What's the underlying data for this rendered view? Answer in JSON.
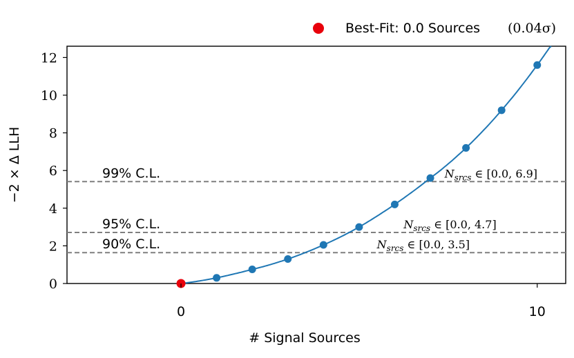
{
  "chart_data": {
    "type": "line",
    "xlabel": "# Signal Sources",
    "ylabel": "−2 × Δ LLH",
    "xlim": [
      -3.2,
      10.8
    ],
    "ylim": [
      0,
      12.6
    ],
    "xticks": [
      0,
      10
    ],
    "yticks": [
      0,
      2,
      4,
      6,
      8,
      10,
      12
    ],
    "grid": false,
    "legend_position": "top-right",
    "series": [
      {
        "kind": "markers",
        "color": "#1f77b4",
        "x": [
          0,
          1,
          2,
          3,
          4,
          5,
          6,
          7,
          8,
          9,
          10
        ],
        "values": [
          0.0,
          0.3,
          0.75,
          1.3,
          2.05,
          3.0,
          4.2,
          5.6,
          7.2,
          9.2,
          11.6
        ]
      },
      {
        "kind": "smooth-curve",
        "color": "#1f77b4",
        "x_range": [
          0,
          10.5
        ]
      }
    ],
    "best_fit": {
      "x": 0.0,
      "y": 0.0,
      "color": "#e8000b",
      "legend": "Best-Fit: 0.0 Sources",
      "significance": "(0.04σ)"
    },
    "confidence_levels": [
      {
        "label": "99% C.L.",
        "y": 5.41,
        "range_text": "N",
        "range_sub": "srcs",
        "range_tail": " ∈ [0.0, 6.9]",
        "range_x": 7.4
      },
      {
        "label": "95% C.L.",
        "y": 2.71,
        "range_text": "N",
        "range_sub": "srcs",
        "range_tail": " ∈ [0.0, 4.7]",
        "range_x": 6.25
      },
      {
        "label": "90% C.L.",
        "y": 1.64,
        "range_text": "N",
        "range_sub": "srcs",
        "range_tail": " ∈ [0.0, 3.5]",
        "range_x": 5.5
      }
    ],
    "line_color": "#7f7f7f"
  }
}
